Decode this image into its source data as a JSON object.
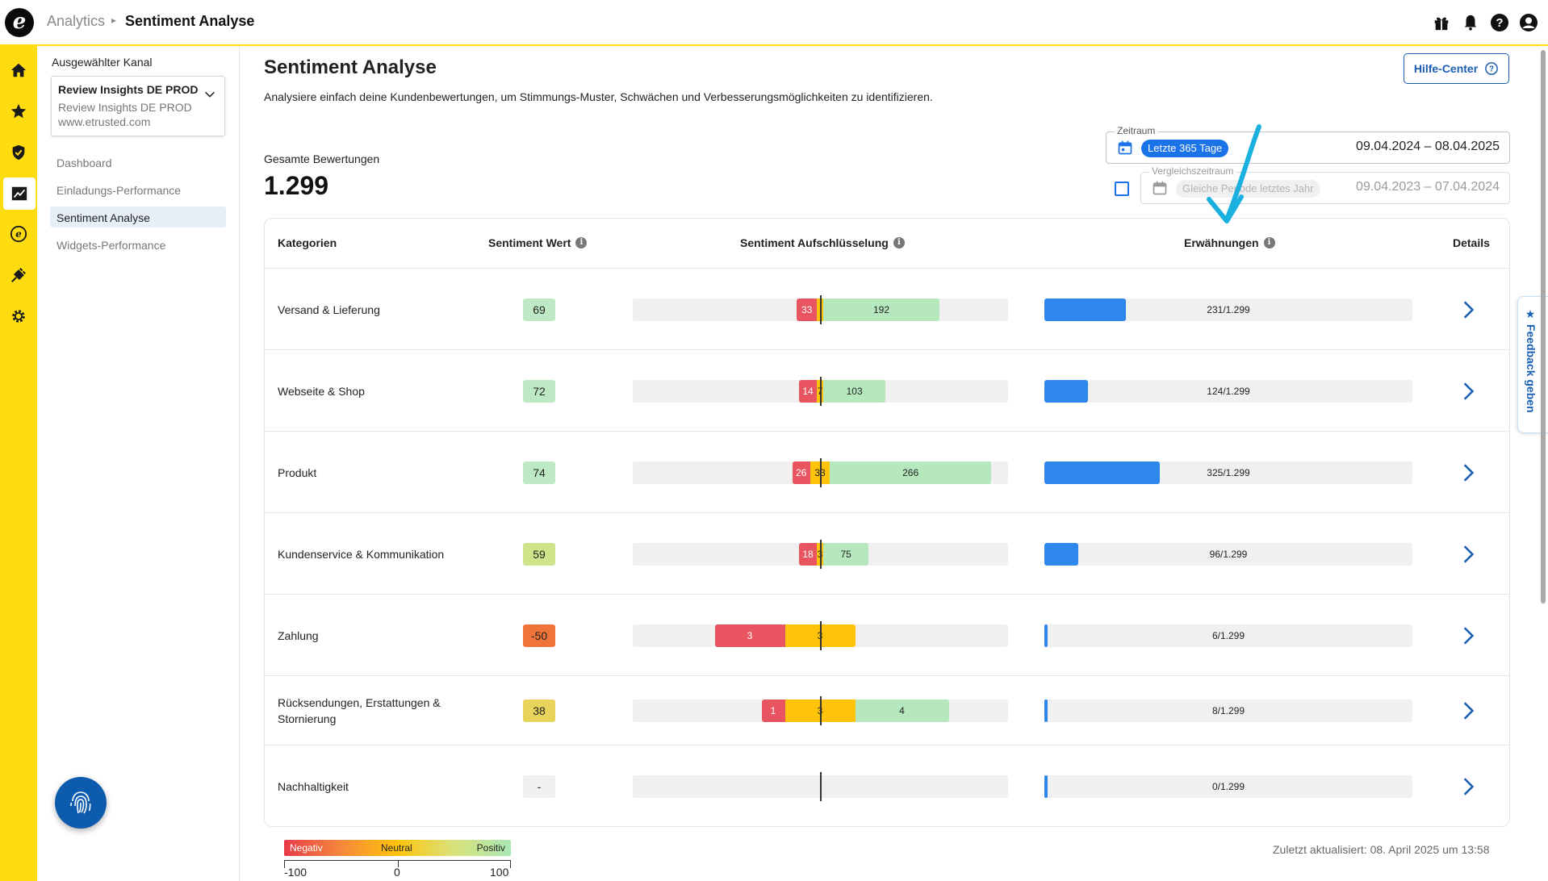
{
  "topbar": {
    "breadcrumb_parent": "Analytics",
    "breadcrumb_separator": "▸",
    "breadcrumb_current": "Sentiment Analyse",
    "icons": [
      "gift-icon",
      "bell-icon",
      "help-icon",
      "account-icon"
    ]
  },
  "rail": {
    "items": [
      "home-icon",
      "star-icon",
      "shield-check-icon",
      "analytics-chart-icon",
      "etrusted-coin-icon",
      "plug-icon",
      "gear-icon"
    ],
    "active": "analytics-chart-icon"
  },
  "subnav": {
    "channel_label": "Ausgewählter Kanal",
    "channel_name": "Review Insights DE PROD",
    "channel_sub1": "Review Insights DE PROD",
    "channel_sub2": "www.etrusted.com",
    "items": [
      {
        "label": "Dashboard"
      },
      {
        "label": "Einladungs-Performance"
      },
      {
        "label": "Sentiment Analyse"
      },
      {
        "label": "Widgets-Performance"
      }
    ],
    "active_item": "Sentiment Analyse"
  },
  "main": {
    "title": "Sentiment Analyse",
    "description": "Analysiere einfach deine Kundenbewertungen, um Stimmungs-Muster, Schwächen und Verbesserungsmöglichkeiten zu identifizieren.",
    "help_button": "Hilfe-Center",
    "total_label": "Gesamte Bewertungen",
    "total_value": "1.299"
  },
  "date_filter": {
    "period_label": "Zeitraum",
    "period_chip": "Letzte 365 Tage",
    "period_range": "09.04.2024 – 08.04.2025",
    "compare_label": "Vergleichszeitraum",
    "compare_chip": "Gleiche Periode letztes Jahr",
    "compare_range": "09.04.2023 – 07.04.2024",
    "compare_checked": false
  },
  "table": {
    "headers": {
      "category": "Kategorien",
      "score": "Sentiment Wert",
      "breakdown": "Sentiment Aufschlüsselung",
      "mentions": "Erwähnungen",
      "details": "Details"
    },
    "rows": [
      {
        "category": "Versand & Lieferung",
        "score": "69",
        "score_color": "#bdeac4",
        "negative": 33,
        "neutral": 6,
        "positive": 192,
        "neg_label": "33",
        "neu_label": "",
        "pos_label": "192",
        "mentions": 231,
        "mentions_label": "231/1.299"
      },
      {
        "category": "Webseite & Shop",
        "score": "72",
        "score_color": "#bdeac4",
        "negative": 14,
        "neutral": 7,
        "positive": 103,
        "neg_label": "14",
        "neu_label": "7",
        "pos_label": "103",
        "mentions": 124,
        "mentions_label": "124/1.299"
      },
      {
        "category": "Produkt",
        "score": "74",
        "score_color": "#bdeac4",
        "negative": 26,
        "neutral": 33,
        "positive": 266,
        "neg_label": "26",
        "neu_label": "33",
        "pos_label": "266",
        "mentions": 325,
        "mentions_label": "325/1.299"
      },
      {
        "category": "Kundenservice & Kommunikation",
        "score": "59",
        "score_color": "#cfe48a",
        "negative": 18,
        "neutral": 3,
        "positive": 75,
        "neg_label": "18",
        "neu_label": "3",
        "pos_label": "75",
        "mentions": 96,
        "mentions_label": "96/1.299"
      },
      {
        "category": "Zahlung",
        "score": "-50",
        "score_color": "#f0743a",
        "negative": 3,
        "neutral": 3,
        "positive": 0,
        "neg_label": "3",
        "neu_label": "3",
        "pos_label": "",
        "mentions": 6,
        "mentions_label": "6/1.299"
      },
      {
        "category": "Rücksendungen, Erstattungen & Stornierung",
        "score": "38",
        "score_color": "#e8d45a",
        "negative": 1,
        "neutral": 3,
        "positive": 4,
        "neg_label": "1",
        "neu_label": "3",
        "pos_label": "4",
        "mentions": 8,
        "mentions_label": "8/1.299"
      },
      {
        "category": "Nachhaltigkeit",
        "score": "-",
        "score_color": "#f0f0f0",
        "negative": 0,
        "neutral": 0,
        "positive": 0,
        "neg_label": "",
        "neu_label": "",
        "pos_label": "",
        "mentions": 0,
        "mentions_label": "0/1.299"
      }
    ],
    "total_mentions": 1299
  },
  "legend": {
    "negative": "Negativ",
    "neutral": "Neutral",
    "positive": "Positiv",
    "min": "-100",
    "mid": "0",
    "max": "100"
  },
  "footer": {
    "updated": "Zuletzt aktualisiert: 08. April 2025 um 13:58"
  },
  "feedback": {
    "label": "★ Feedback geben"
  },
  "colors": {
    "brand_yellow": "#ffdc0f",
    "accent_blue": "#1a73e8",
    "negative": "#e85560",
    "neutral": "#ffc40a",
    "positive": "#b5e8bd",
    "mention_bar": "#2e88eb",
    "annotation_arrow": "#1ab0e0"
  }
}
